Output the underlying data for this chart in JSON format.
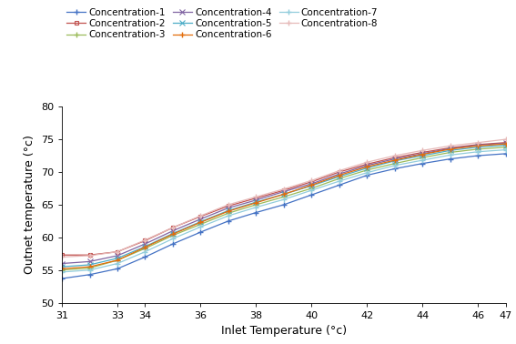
{
  "title": "",
  "xlabel": "Inlet Temperature (°c)",
  "ylabel": "Outnet temperature (°c)",
  "xlim": [
    31,
    47
  ],
  "ylim": [
    50,
    80
  ],
  "xticks": [
    31,
    33,
    34,
    36,
    38,
    40,
    42,
    44,
    46,
    47
  ],
  "yticks": [
    50,
    55,
    60,
    65,
    70,
    75,
    80
  ],
  "x_data": [
    31,
    32,
    33,
    34,
    35,
    36,
    37,
    38,
    39,
    40,
    41,
    42,
    43,
    44,
    45,
    46,
    47
  ],
  "series": [
    {
      "label": "Concentration-1",
      "color": "#4472C4",
      "marker": "+",
      "y_data": [
        53.7,
        54.3,
        55.2,
        57.0,
        59.0,
        60.8,
        62.5,
        63.8,
        65.0,
        66.5,
        68.0,
        69.5,
        70.5,
        71.3,
        72.0,
        72.5,
        72.8
      ]
    },
    {
      "label": "Concentration-2",
      "color": "#C0504D",
      "marker": "s",
      "y_data": [
        57.3,
        57.3,
        57.8,
        59.5,
        61.5,
        63.2,
        64.8,
        66.0,
        67.2,
        68.5,
        70.0,
        71.2,
        72.2,
        73.0,
        73.7,
        74.2,
        74.5
      ]
    },
    {
      "label": "Concentration-3",
      "color": "#9BBB59",
      "marker": "+",
      "y_data": [
        55.0,
        55.3,
        56.5,
        58.3,
        60.3,
        62.0,
        63.7,
        65.0,
        66.2,
        67.5,
        69.0,
        70.3,
        71.3,
        72.2,
        73.0,
        73.5,
        73.8
      ]
    },
    {
      "label": "Concentration-4",
      "color": "#8064A2",
      "marker": "x",
      "y_data": [
        56.0,
        56.3,
        57.2,
        59.0,
        61.0,
        62.8,
        64.5,
        65.7,
        67.0,
        68.2,
        69.7,
        71.0,
        72.0,
        72.8,
        73.6,
        74.1,
        74.4
      ]
    },
    {
      "label": "Concentration-5",
      "color": "#4BACC6",
      "marker": "x",
      "y_data": [
        55.5,
        55.8,
        56.8,
        58.6,
        60.6,
        62.4,
        64.1,
        65.4,
        66.6,
        67.9,
        69.3,
        70.6,
        71.7,
        72.5,
        73.3,
        73.8,
        74.1
      ]
    },
    {
      "label": "Concentration-6",
      "color": "#E36C09",
      "marker": "+",
      "y_data": [
        55.2,
        55.5,
        56.5,
        58.5,
        60.5,
        62.3,
        64.0,
        65.3,
        66.6,
        68.0,
        69.5,
        70.8,
        71.8,
        72.7,
        73.5,
        74.0,
        74.3
      ]
    },
    {
      "label": "Concentration-7",
      "color": "#92CDDC",
      "marker": "+",
      "y_data": [
        54.7,
        55.0,
        56.0,
        57.8,
        59.8,
        61.6,
        63.3,
        64.6,
        65.8,
        67.2,
        68.6,
        69.9,
        71.0,
        71.8,
        72.6,
        73.1,
        73.4
      ]
    },
    {
      "label": "Concentration-8",
      "color": "#E6B9B8",
      "marker": "+",
      "y_data": [
        57.0,
        57.2,
        57.8,
        59.6,
        61.5,
        63.3,
        65.0,
        66.2,
        67.4,
        68.7,
        70.2,
        71.5,
        72.5,
        73.3,
        74.0,
        74.5,
        75.0
      ]
    }
  ],
  "legend_ncol": 3,
  "legend_fontsize": 7.5,
  "axis_fontsize": 9,
  "tick_fontsize": 8,
  "background_color": "#FFFFFF"
}
